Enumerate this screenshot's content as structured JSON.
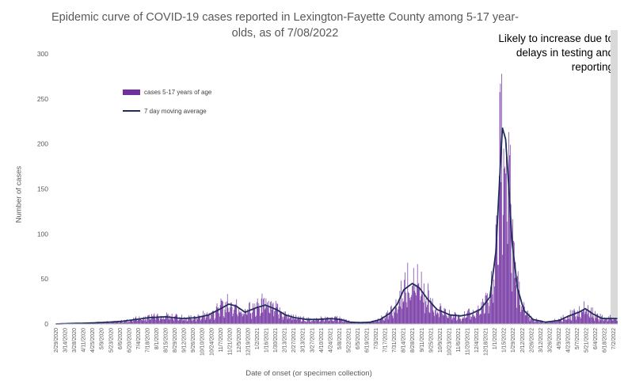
{
  "chart_data": {
    "type": "bar",
    "title": "Epidemic curve of COVID-19 cases reported in Lexington-Fayette County among 5-17 year-olds, as of 7/08/2022",
    "xlabel": "Date of onset (or specimen collection)",
    "ylabel": "Number of cases",
    "ylim": [
      0,
      300
    ],
    "yticks": [
      0,
      50,
      100,
      150,
      200,
      250,
      300
    ],
    "grid": false,
    "legend_position": "upper-left",
    "annotation": "Likely to increase due to delays in testing and reporting",
    "series": [
      {
        "name": "cases 5-17 years of age",
        "kind": "bar",
        "color": "#7030a0"
      },
      {
        "name": "7 day moving average",
        "kind": "line",
        "color": "#1f2d5c"
      }
    ],
    "x_start": "2020-02-29",
    "x_end": "2022-07-08",
    "tick_labels": [
      "2/29/2020",
      "3/14/2020",
      "3/28/2020",
      "4/11/2020",
      "4/25/2020",
      "5/9/2020",
      "5/23/2020",
      "6/6/2020",
      "6/20/2020",
      "7/4/2020",
      "7/18/2020",
      "8/1/2020",
      "8/15/2020",
      "8/29/2020",
      "9/12/2020",
      "9/26/2020",
      "10/10/2020",
      "10/24/2020",
      "11/7/2020",
      "11/21/2020",
      "12/5/2020",
      "12/19/2020",
      "1/2/2021",
      "1/16/2021",
      "1/30/2021",
      "2/13/2021",
      "2/27/2021",
      "3/13/2021",
      "3/27/2021",
      "4/10/2021",
      "4/24/2021",
      "5/8/2021",
      "5/22/2021",
      "6/5/2021",
      "6/19/2021",
      "7/3/2021",
      "7/17/2021",
      "7/31/2021",
      "8/14/2021",
      "8/28/2021",
      "9/11/2021",
      "9/25/2021",
      "10/9/2021",
      "10/23/2021",
      "11/6/2021",
      "11/20/2021",
      "12/4/2021",
      "12/18/2021",
      "1/1/2022",
      "1/15/2022",
      "1/29/2022",
      "2/12/2022",
      "2/26/2022",
      "3/12/2022",
      "3/26/2022",
      "4/9/2022",
      "4/23/2022",
      "5/7/2022",
      "5/21/2022",
      "6/4/2022",
      "6/18/2022",
      "7/2/2022"
    ],
    "moving_average_breakpoints": [
      [
        "2020-02-29",
        0
      ],
      [
        "2020-03-20",
        0.5
      ],
      [
        "2020-04-20",
        1
      ],
      [
        "2020-05-20",
        2
      ],
      [
        "2020-06-10",
        3
      ],
      [
        "2020-07-01",
        5
      ],
      [
        "2020-07-20",
        7
      ],
      [
        "2020-08-15",
        8
      ],
      [
        "2020-09-10",
        6
      ],
      [
        "2020-10-01",
        7
      ],
      [
        "2020-10-20",
        10
      ],
      [
        "2020-11-05",
        16
      ],
      [
        "2020-11-20",
        22
      ],
      [
        "2020-12-01",
        20
      ],
      [
        "2020-12-15",
        13
      ],
      [
        "2021-01-01",
        18
      ],
      [
        "2021-01-15",
        21
      ],
      [
        "2021-02-01",
        16
      ],
      [
        "2021-02-15",
        10
      ],
      [
        "2021-03-01",
        7
      ],
      [
        "2021-03-20",
        5
      ],
      [
        "2021-04-05",
        5
      ],
      [
        "2021-04-25",
        6
      ],
      [
        "2021-05-10",
        5
      ],
      [
        "2021-05-25",
        2
      ],
      [
        "2021-06-10",
        1.5
      ],
      [
        "2021-06-25",
        2
      ],
      [
        "2021-07-10",
        5
      ],
      [
        "2021-07-25",
        12
      ],
      [
        "2021-08-05",
        22
      ],
      [
        "2021-08-15",
        38
      ],
      [
        "2021-08-28",
        45
      ],
      [
        "2021-09-08",
        40
      ],
      [
        "2021-09-20",
        28
      ],
      [
        "2021-10-05",
        16
      ],
      [
        "2021-10-25",
        10
      ],
      [
        "2021-11-10",
        9
      ],
      [
        "2021-11-25",
        11
      ],
      [
        "2021-12-10",
        16
      ],
      [
        "2021-12-25",
        30
      ],
      [
        "2022-01-03",
        80
      ],
      [
        "2022-01-08",
        150
      ],
      [
        "2022-01-13",
        218
      ],
      [
        "2022-01-18",
        205
      ],
      [
        "2022-01-23",
        150
      ],
      [
        "2022-01-28",
        90
      ],
      [
        "2022-02-05",
        40
      ],
      [
        "2022-02-15",
        15
      ],
      [
        "2022-03-01",
        5
      ],
      [
        "2022-03-20",
        2
      ],
      [
        "2022-04-10",
        4
      ],
      [
        "2022-04-25",
        9
      ],
      [
        "2022-05-10",
        13
      ],
      [
        "2022-05-20",
        17
      ],
      [
        "2022-06-01",
        11
      ],
      [
        "2022-06-15",
        6
      ],
      [
        "2022-07-08",
        6
      ]
    ],
    "peak_daily_cases": {
      "date": "2022-01-10",
      "value": 267
    }
  }
}
